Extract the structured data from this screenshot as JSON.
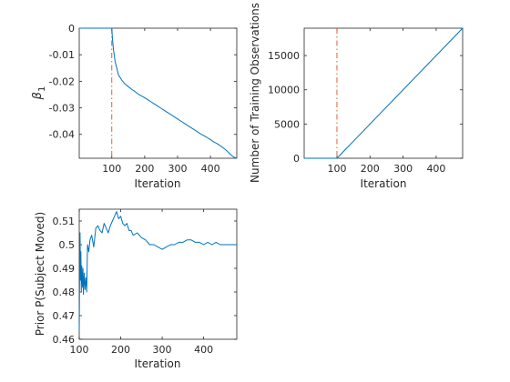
{
  "colors": {
    "series": "#0072bd",
    "marker_line": "#d95319"
  },
  "chart_data": [
    {
      "type": "line",
      "xlabel": "Iteration",
      "ylabel": "β",
      "ylabel_sub": "1",
      "xlim": [
        1,
        480
      ],
      "ylim": [
        -0.049,
        0
      ],
      "xticks": [
        100,
        200,
        300,
        400
      ],
      "yticks": [
        0,
        -0.01,
        -0.02,
        -0.03,
        -0.04
      ],
      "vline_x": 100,
      "series": [
        {
          "x": [
            1,
            99,
            100,
            102,
            105,
            110,
            115,
            120,
            130,
            140,
            150,
            160,
            170,
            180,
            190,
            200,
            210,
            220,
            230,
            240,
            250,
            260,
            270,
            280,
            290,
            300,
            310,
            320,
            330,
            340,
            350,
            360,
            370,
            380,
            390,
            400,
            410,
            420,
            430,
            440,
            450,
            460,
            470,
            480
          ],
          "y": [
            0,
            0,
            0,
            -0.004,
            -0.008,
            -0.0125,
            -0.015,
            -0.0175,
            -0.0195,
            -0.021,
            -0.022,
            -0.023,
            -0.0238,
            -0.0248,
            -0.0255,
            -0.0262,
            -0.027,
            -0.0278,
            -0.0286,
            -0.0294,
            -0.0302,
            -0.031,
            -0.0318,
            -0.0326,
            -0.0334,
            -0.0342,
            -0.035,
            -0.0358,
            -0.0366,
            -0.0374,
            -0.0382,
            -0.039,
            -0.0398,
            -0.0405,
            -0.0412,
            -0.042,
            -0.0428,
            -0.0435,
            -0.0443,
            -0.0452,
            -0.0462,
            -0.0475,
            -0.0485,
            -0.049
          ]
        }
      ]
    },
    {
      "type": "line",
      "xlabel": "Iteration",
      "ylabel": "Number of Training Observations",
      "xlim": [
        1,
        480
      ],
      "ylim": [
        0,
        19000
      ],
      "xticks": [
        100,
        200,
        300,
        400
      ],
      "yticks": [
        0,
        5000,
        10000,
        15000
      ],
      "vline_x": 100,
      "series": [
        {
          "x": [
            1,
            99,
            100,
            480
          ],
          "y": [
            0,
            0,
            0,
            19000
          ]
        }
      ]
    },
    {
      "type": "line",
      "xlabel": "Iteration",
      "ylabel": "Prior P(Subject Moved)",
      "xlim": [
        100,
        480
      ],
      "ylim": [
        0.46,
        0.515
      ],
      "xticks": [
        100,
        200,
        300,
        400
      ],
      "yticks": [
        0.46,
        0.47,
        0.48,
        0.49,
        0.5,
        0.51
      ],
      "series": [
        {
          "x": [
            100,
            101,
            102,
            103,
            104,
            105,
            106,
            107,
            108,
            109,
            110,
            112,
            114,
            116,
            118,
            120,
            123,
            126,
            130,
            135,
            140,
            145,
            150,
            155,
            160,
            165,
            170,
            175,
            180,
            185,
            190,
            195,
            200,
            205,
            210,
            215,
            220,
            225,
            230,
            240,
            250,
            260,
            270,
            280,
            290,
            300,
            310,
            320,
            330,
            340,
            350,
            360,
            370,
            380,
            390,
            400,
            410,
            420,
            430,
            440,
            450,
            460,
            470,
            480
          ],
          "y": [
            0.463,
            0.49,
            0.505,
            0.485,
            0.497,
            0.48,
            0.491,
            0.486,
            0.482,
            0.49,
            0.479,
            0.488,
            0.481,
            0.486,
            0.48,
            0.5,
            0.497,
            0.502,
            0.504,
            0.499,
            0.507,
            0.508,
            0.506,
            0.505,
            0.509,
            0.507,
            0.505,
            0.508,
            0.51,
            0.512,
            0.514,
            0.511,
            0.512,
            0.509,
            0.508,
            0.509,
            0.506,
            0.506,
            0.504,
            0.505,
            0.503,
            0.502,
            0.5,
            0.5,
            0.499,
            0.498,
            0.499,
            0.5,
            0.5,
            0.501,
            0.501,
            0.502,
            0.502,
            0.501,
            0.501,
            0.5,
            0.501,
            0.5,
            0.501,
            0.5,
            0.5,
            0.5,
            0.5,
            0.5
          ]
        }
      ]
    }
  ]
}
